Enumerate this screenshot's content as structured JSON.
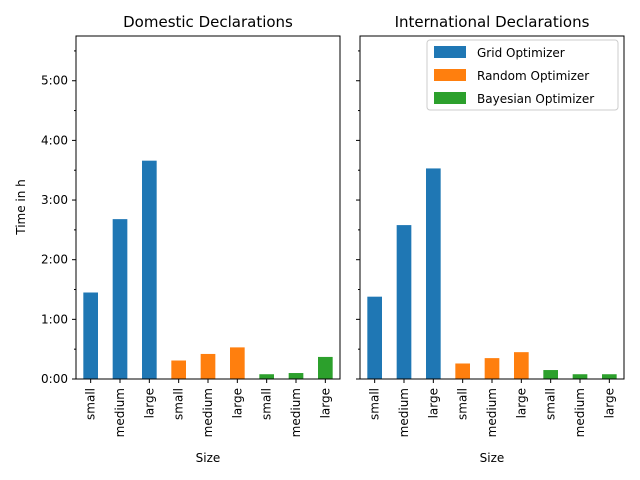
{
  "chart_data": {
    "type": "bar",
    "ylabel": "Time in h",
    "xlabel": "Size",
    "ylim_hours": [
      0,
      5.75
    ],
    "y_ticks": [
      {
        "value": 0,
        "label": "0:00"
      },
      {
        "value": 1,
        "label": "1:00"
      },
      {
        "value": 2,
        "label": "2:00"
      },
      {
        "value": 3,
        "label": "3:00"
      },
      {
        "value": 4,
        "label": "4:00"
      },
      {
        "value": 5,
        "label": "5:00"
      }
    ],
    "categories": [
      "small",
      "medium",
      "large",
      "small",
      "medium",
      "large",
      "small",
      "medium",
      "large"
    ],
    "series": [
      {
        "name": "Grid Optimizer",
        "color": "#1f77b4"
      },
      {
        "name": "Random Optimizer",
        "color": "#ff7f0e"
      },
      {
        "name": "Bayesian Optimizer",
        "color": "#2ca02c"
      }
    ],
    "legend_position": "top-right",
    "panels": [
      {
        "title": "Domestic Declarations",
        "values_hours": [
          1.45,
          2.68,
          3.66,
          0.31,
          0.42,
          0.53,
          0.08,
          0.1,
          0.37
        ]
      },
      {
        "title": "International Declarations",
        "values_hours": [
          1.38,
          2.58,
          3.53,
          0.26,
          0.35,
          0.45,
          0.15,
          0.08,
          0.08
        ]
      }
    ]
  }
}
